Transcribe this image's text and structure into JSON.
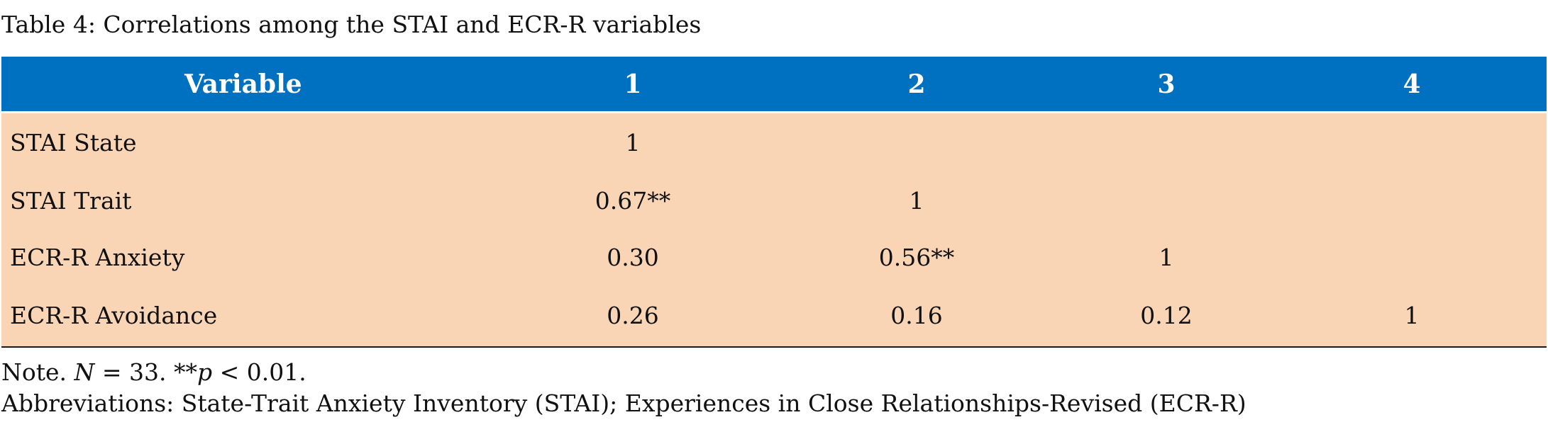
{
  "caption": "Table 4: Correlations among the STAI and ECR-R variables",
  "columns": [
    "Variable",
    "1",
    "2",
    "3",
    "4"
  ],
  "rows": [
    {
      "label": "STAI State",
      "cells": [
        "1",
        "",
        "",
        ""
      ]
    },
    {
      "label": "STAI Trait",
      "cells": [
        "0.67**",
        "1",
        "",
        ""
      ]
    },
    {
      "label": "ECR-R Anxiety",
      "cells": [
        "0.30",
        "0.56**",
        "1",
        ""
      ]
    },
    {
      "label": "ECR-R Avoidance",
      "cells": [
        "0.26",
        "0.16",
        "0.12",
        "1"
      ]
    }
  ],
  "note": {
    "prefix": "Note. ",
    "n_symbol": "N",
    "n_text": " = 33. **",
    "p_symbol": "p",
    "p_text": " < 0.01.",
    "abbreviations": "Abbreviations: State-Trait Anxiety Inventory (STAI); Experiences in Close Relationships-Revised (ECR-R)"
  },
  "colors": {
    "header_bg": "#0070c0",
    "header_text": "#ffffff",
    "body_bg": "#f9d5b5"
  }
}
